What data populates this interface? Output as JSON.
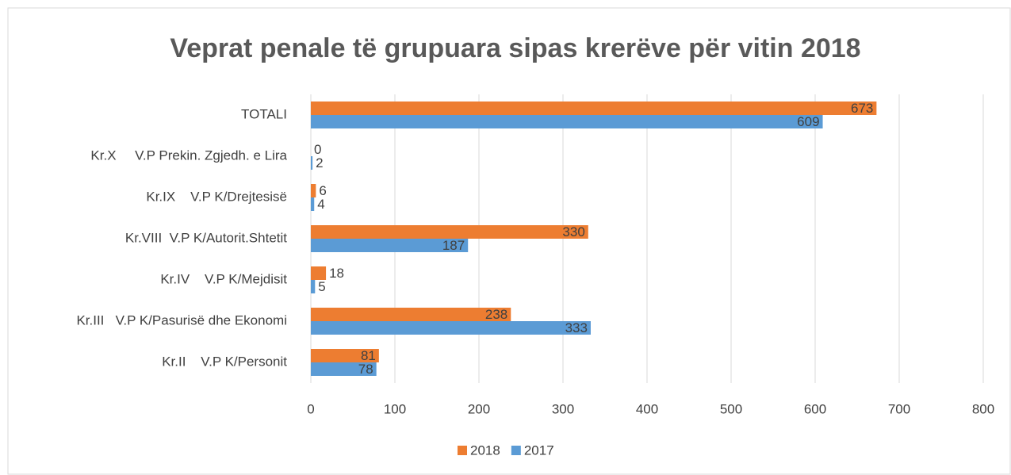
{
  "chart_data": {
    "type": "hbar",
    "title": "Veprat penale të grupuara sipas krerëve për vitin 2018",
    "categories": [
      "TOTALI",
      "Kr.X     V.P Prekin. Zgjedh. e Lira",
      "Kr.IX    V.P K/Drejtesisë",
      "Kr.VIII  V.P K/Autorit.Shtetit",
      "Kr.IV    V.P K/Mejdisit",
      "Kr.III   V.P K/Pasurisë dhe Ekonomi",
      "Kr.II    V.P K/Personit"
    ],
    "series": [
      {
        "name": "2018",
        "color": "#ed7d31",
        "values": [
          673,
          0,
          6,
          330,
          18,
          238,
          81
        ]
      },
      {
        "name": "2017",
        "color": "#5b9bd5",
        "values": [
          609,
          2,
          4,
          187,
          5,
          333,
          78
        ]
      }
    ],
    "xlim": [
      0,
      800
    ],
    "xticks": [
      0,
      100,
      200,
      300,
      400,
      500,
      600,
      700,
      800
    ],
    "grid": true,
    "legend": "bottom"
  }
}
